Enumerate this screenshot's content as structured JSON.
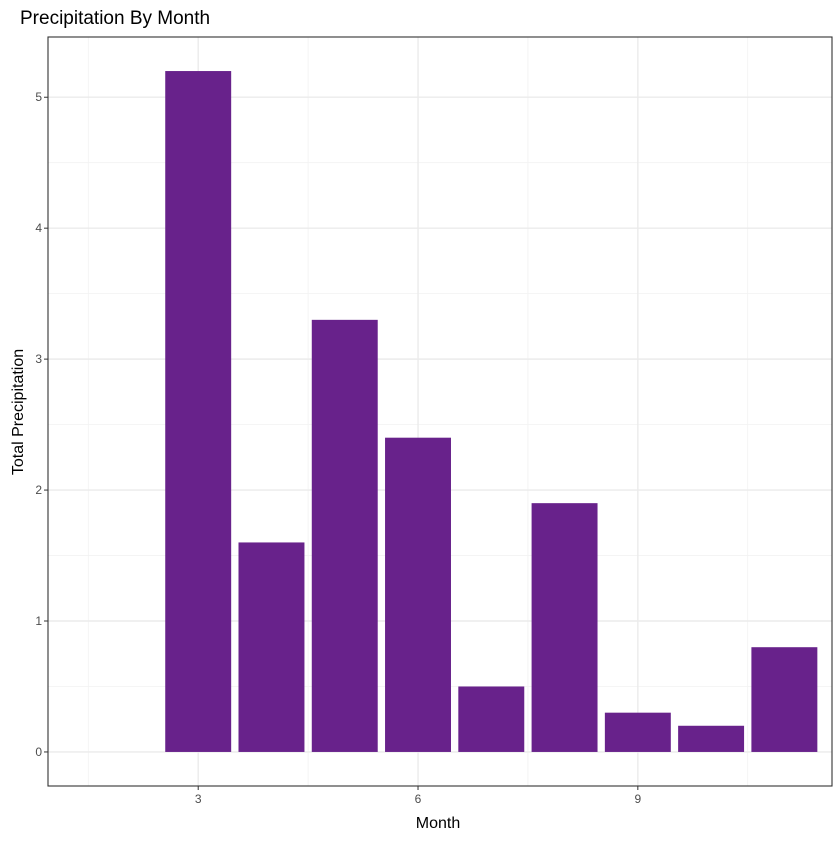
{
  "chart_data": {
    "type": "bar",
    "title": "Precipitation By Month",
    "xlabel": "Month",
    "ylabel": "Total Precipitation",
    "x": [
      3,
      4,
      5,
      6,
      7,
      8,
      9,
      10,
      11
    ],
    "values": [
      5.2,
      1.6,
      3.3,
      2.4,
      0.5,
      1.9,
      0.3,
      0.2,
      0.8
    ],
    "xlim": [
      0.95,
      11.65
    ],
    "ylim": [
      -0.26,
      5.46
    ],
    "x_ticks": [
      3,
      6,
      9
    ],
    "y_ticks": [
      0,
      1,
      2,
      3,
      4,
      5
    ],
    "x_minor_ticks": [
      1.5,
      4.5,
      7.5,
      10.5
    ],
    "y_minor_ticks": [
      0.5,
      1.5,
      2.5,
      3.5,
      4.5
    ],
    "bar_color": "#68228b",
    "grid": true,
    "legend": "none"
  }
}
